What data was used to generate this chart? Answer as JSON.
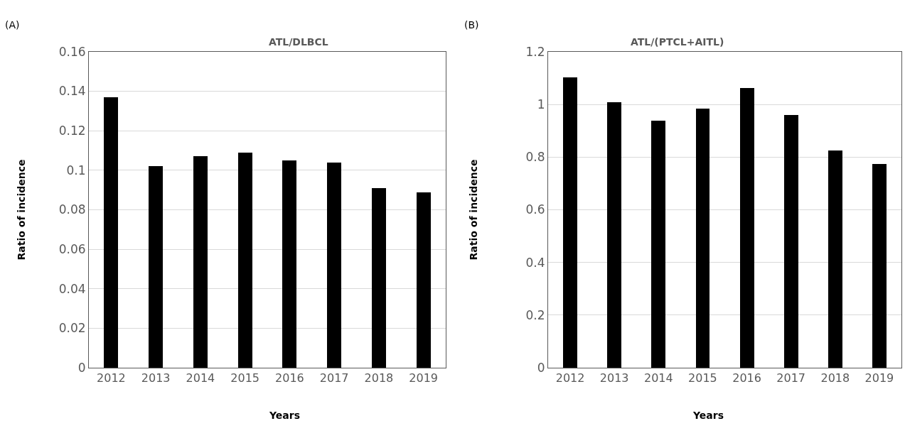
{
  "chart_data": [
    {
      "type": "bar",
      "title": "ATL/DLBCL",
      "xlabel": "Years",
      "ylabel": "Ratio of incidence",
      "annotations": [
        "(A)"
      ],
      "categories": [
        "2012",
        "2013",
        "2014",
        "2015",
        "2016",
        "2017",
        "2018",
        "2019"
      ],
      "values": [
        0.137,
        0.102,
        0.107,
        0.109,
        0.105,
        0.104,
        0.091,
        0.089
      ],
      "color": "#000000",
      "ylim": [
        0,
        0.16
      ],
      "yticks": [
        0,
        0.02,
        0.04,
        0.06,
        0.08,
        0.1,
        0.12,
        0.14,
        0.16
      ],
      "grid": "y"
    },
    {
      "type": "bar",
      "title": "ATL/(PTCL+AITL)",
      "xlabel": "Years",
      "ylabel": "Ratio of incidence",
      "annotations": [
        "(B)"
      ],
      "categories": [
        "2012",
        "2013",
        "2014",
        "2015",
        "2016",
        "2017",
        "2018",
        "2019"
      ],
      "values": [
        1.102,
        1.009,
        0.938,
        0.983,
        1.063,
        0.961,
        0.826,
        0.773
      ],
      "color": "#000000",
      "ylim": [
        0,
        1.2
      ],
      "yticks": [
        0,
        0.2,
        0.4,
        0.6,
        0.8,
        1,
        1.2
      ],
      "grid": "y"
    }
  ]
}
